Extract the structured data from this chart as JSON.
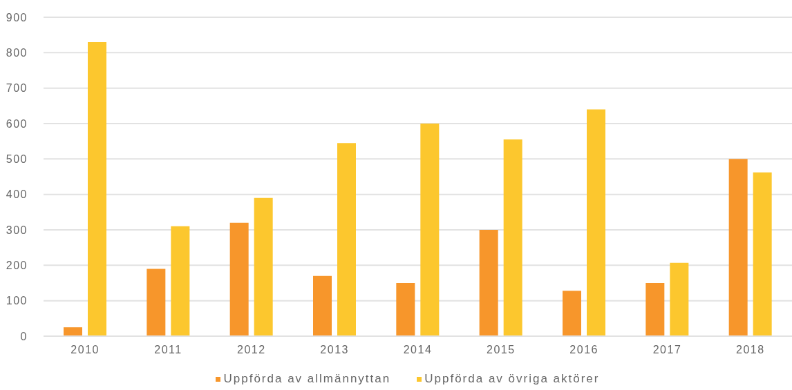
{
  "chart_data": {
    "type": "bar",
    "categories": [
      "2010",
      "2011",
      "2012",
      "2013",
      "2014",
      "2015",
      "2016",
      "2017",
      "2018"
    ],
    "series": [
      {
        "name": "Uppförda av allmännyttan",
        "color": "#f7962b",
        "values": [
          25,
          190,
          320,
          170,
          150,
          300,
          128,
          150,
          500
        ]
      },
      {
        "name": "Uppförda av övriga aktörer",
        "color": "#fcc72e",
        "values": [
          830,
          310,
          390,
          545,
          600,
          555,
          640,
          207,
          462
        ]
      }
    ],
    "ylim": [
      0,
      900
    ],
    "yticks": [
      0,
      100,
      200,
      300,
      400,
      500,
      600,
      700,
      800,
      900
    ],
    "grid": "y",
    "legend": "bottom"
  }
}
